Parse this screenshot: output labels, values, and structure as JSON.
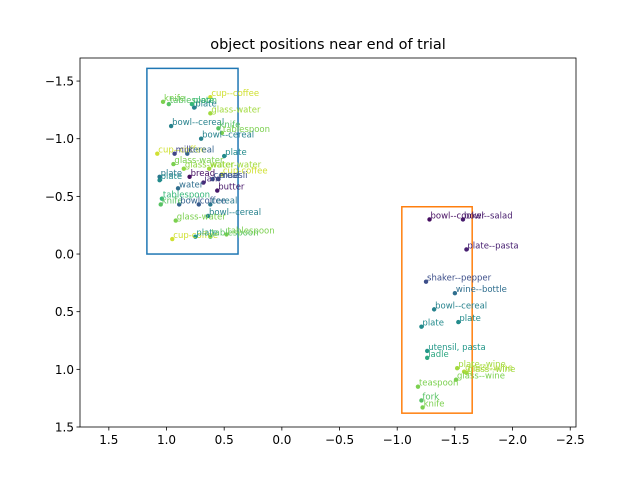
{
  "chart_data": {
    "type": "scatter",
    "title": "object positions near end of trial",
    "xlabel": "",
    "ylabel": "",
    "xlim": [
      1.75,
      -2.55
    ],
    "ylim": [
      1.5,
      -1.7
    ],
    "x_inverted": true,
    "y_inverted": true,
    "xticks": [
      1.5,
      1.0,
      0.5,
      0.0,
      -0.5,
      -1.0,
      -1.5,
      -2.0,
      -2.5
    ],
    "xtick_labels": [
      "1.5",
      "1.0",
      "0.5",
      "0.0",
      "−0.5",
      "−1.0",
      "−1.5",
      "−2.0",
      "−2.5"
    ],
    "yticks": [
      -1.5,
      -1.0,
      -0.5,
      0.0,
      0.5,
      1.0,
      1.5
    ],
    "ytick_labels": [
      "−1.5",
      "−1.0",
      "−0.5",
      "0.0",
      "0.5",
      "1.0",
      "1.5"
    ],
    "grid": false,
    "colormap": "viridis",
    "boxes": [
      {
        "name": "left-region",
        "x": [
          1.17,
          0.38
        ],
        "y": [
          -1.61,
          0.0
        ],
        "color": "#1f77b4"
      },
      {
        "name": "right-region",
        "x": [
          -1.04,
          -1.65
        ],
        "y": [
          -0.41,
          1.38
        ],
        "color": "#ff7f0e"
      }
    ],
    "points": [
      {
        "label": "cup--coffee",
        "x": 0.62,
        "y": -1.36,
        "c": 0.95
      },
      {
        "label": "knife",
        "x": 1.03,
        "y": -1.32,
        "c": 0.85
      },
      {
        "label": "tablespoon",
        "x": 0.98,
        "y": -1.3,
        "c": 0.8
      },
      {
        "label": "plate",
        "x": 0.78,
        "y": -1.3,
        "c": 0.75
      },
      {
        "label": "plate",
        "x": 0.76,
        "y": -1.27,
        "c": 0.55
      },
      {
        "label": "glass-water",
        "x": 0.62,
        "y": -1.22,
        "c": 0.9
      },
      {
        "label": "bowl--cereal",
        "x": 0.96,
        "y": -1.11,
        "c": 0.55
      },
      {
        "label": "knife",
        "x": 0.55,
        "y": -1.09,
        "c": 0.8
      },
      {
        "label": "tablespoon",
        "x": 0.52,
        "y": -1.05,
        "c": 0.85
      },
      {
        "label": "bowl--cereal",
        "x": 0.7,
        "y": -1.0,
        "c": 0.55
      },
      {
        "label": "cup--coffee",
        "x": 1.08,
        "y": -0.87,
        "c": 0.95
      },
      {
        "label": "milk",
        "x": 0.93,
        "y": -0.87,
        "c": 0.25
      },
      {
        "label": "cereal",
        "x": 0.82,
        "y": -0.87,
        "c": 0.4
      },
      {
        "label": "plate",
        "x": 0.5,
        "y": -0.85,
        "c": 0.6
      },
      {
        "label": "glass-water",
        "x": 0.94,
        "y": -0.78,
        "c": 0.85
      },
      {
        "label": "glass-water",
        "x": 0.85,
        "y": -0.74,
        "c": 0.88
      },
      {
        "label": "water-water",
        "x": 0.63,
        "y": -0.74,
        "c": 0.9
      },
      {
        "label": "cup-coffee",
        "x": 0.52,
        "y": -0.69,
        "c": 0.95
      },
      {
        "label": "plate",
        "x": 1.06,
        "y": -0.67,
        "c": 0.5
      },
      {
        "label": "plate",
        "x": 1.06,
        "y": -0.64,
        "c": 0.6
      },
      {
        "label": "bread",
        "x": 0.8,
        "y": -0.67,
        "c": 0.05
      },
      {
        "label": "jam",
        "x": 0.68,
        "y": -0.62,
        "c": 0.15
      },
      {
        "label": "cereal",
        "x": 0.6,
        "y": -0.65,
        "c": 0.35
      },
      {
        "label": "muesli",
        "x": 0.55,
        "y": -0.65,
        "c": 0.3
      },
      {
        "label": "water",
        "x": 0.9,
        "y": -0.57,
        "c": 0.45
      },
      {
        "label": "butter",
        "x": 0.56,
        "y": -0.55,
        "c": 0.08
      },
      {
        "label": "tablespoon",
        "x": 1.04,
        "y": -0.48,
        "c": 0.75
      },
      {
        "label": "knife",
        "x": 1.05,
        "y": -0.43,
        "c": 0.8
      },
      {
        "label": "bowl",
        "x": 0.89,
        "y": -0.43,
        "c": 0.4
      },
      {
        "label": "coffee",
        "x": 0.72,
        "y": -0.43,
        "c": 0.35
      },
      {
        "label": "cereal",
        "x": 0.62,
        "y": -0.43,
        "c": 0.5
      },
      {
        "label": "bowl--cereal",
        "x": 0.64,
        "y": -0.33,
        "c": 0.55
      },
      {
        "label": "glass-water",
        "x": 0.92,
        "y": -0.29,
        "c": 0.85
      },
      {
        "label": "cup-coffee",
        "x": 0.95,
        "y": -0.13,
        "c": 0.95
      },
      {
        "label": "plate",
        "x": 0.75,
        "y": -0.15,
        "c": 0.65
      },
      {
        "label": "tablespoon",
        "x": 0.62,
        "y": -0.15,
        "c": 0.8
      },
      {
        "label": "tablespoon",
        "x": 0.48,
        "y": -0.17,
        "c": 0.85
      },
      {
        "label": "bowl--cooker",
        "x": -1.28,
        "y": -0.3,
        "c": 0.05
      },
      {
        "label": "bowl--salad",
        "x": -1.57,
        "y": -0.3,
        "c": 0.1
      },
      {
        "label": "plate--pasta",
        "x": -1.6,
        "y": -0.04,
        "c": 0.12
      },
      {
        "label": "shaker--pepper",
        "x": -1.25,
        "y": 0.24,
        "c": 0.3
      },
      {
        "label": "wine--bottle",
        "x": -1.5,
        "y": 0.34,
        "c": 0.45
      },
      {
        "label": "bowl--cereal",
        "x": -1.32,
        "y": 0.48,
        "c": 0.55
      },
      {
        "label": "plate",
        "x": -1.53,
        "y": 0.59,
        "c": 0.6
      },
      {
        "label": "plate",
        "x": -1.21,
        "y": 0.63,
        "c": 0.6
      },
      {
        "label": "utensil, pasta",
        "x": -1.26,
        "y": 0.84,
        "c": 0.65
      },
      {
        "label": "ladle",
        "x": -1.26,
        "y": 0.9,
        "c": 0.7
      },
      {
        "label": "plate--wine",
        "x": -1.52,
        "y": 0.99,
        "c": 0.9
      },
      {
        "label": "glass--wine",
        "x": -1.58,
        "y": 1.02,
        "c": 0.92
      },
      {
        "label": "glass--wine",
        "x": -1.6,
        "y": 1.03,
        "c": 0.9
      },
      {
        "label": "glass--wine",
        "x": -1.51,
        "y": 1.09,
        "c": 0.85
      },
      {
        "label": "teaspoon",
        "x": -1.18,
        "y": 1.15,
        "c": 0.85
      },
      {
        "label": "fork",
        "x": -1.21,
        "y": 1.27,
        "c": 0.8
      },
      {
        "label": "knife",
        "x": -1.22,
        "y": 1.33,
        "c": 0.85
      }
    ]
  }
}
